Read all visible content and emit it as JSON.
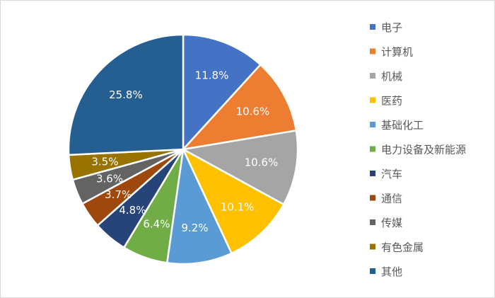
{
  "chart_data": {
    "type": "pie",
    "title": "",
    "legend_position": "right",
    "start_angle_deg": 0,
    "direction": "clockwise",
    "slices": [
      {
        "name": "电子",
        "value": 11.8,
        "label": "11.8%",
        "color": "#4472C4"
      },
      {
        "name": "计算机",
        "value": 10.6,
        "label": "10.6%",
        "color": "#ED7D31"
      },
      {
        "name": "机械",
        "value": 10.6,
        "label": "10.6%",
        "color": "#A5A5A5"
      },
      {
        "name": "医药",
        "value": 10.1,
        "label": "10.1%",
        "color": "#FFC000"
      },
      {
        "name": "基础化工",
        "value": 9.2,
        "label": "9.2%",
        "color": "#5B9BD5"
      },
      {
        "name": "电力设备及新能源",
        "value": 6.4,
        "label": "6.4%",
        "color": "#70AD47"
      },
      {
        "name": "汽车",
        "value": 4.8,
        "label": "4.8%",
        "color": "#264478"
      },
      {
        "name": "通信",
        "value": 3.7,
        "label": "3.7%",
        "color": "#9E480E"
      },
      {
        "name": "传媒",
        "value": 3.6,
        "label": "3.6%",
        "color": "#636363"
      },
      {
        "name": "有色金属",
        "value": 3.5,
        "label": "3.5%",
        "color": "#997300"
      },
      {
        "name": "其他",
        "value": 25.8,
        "label": "25.8%",
        "color": "#255E91"
      }
    ]
  }
}
